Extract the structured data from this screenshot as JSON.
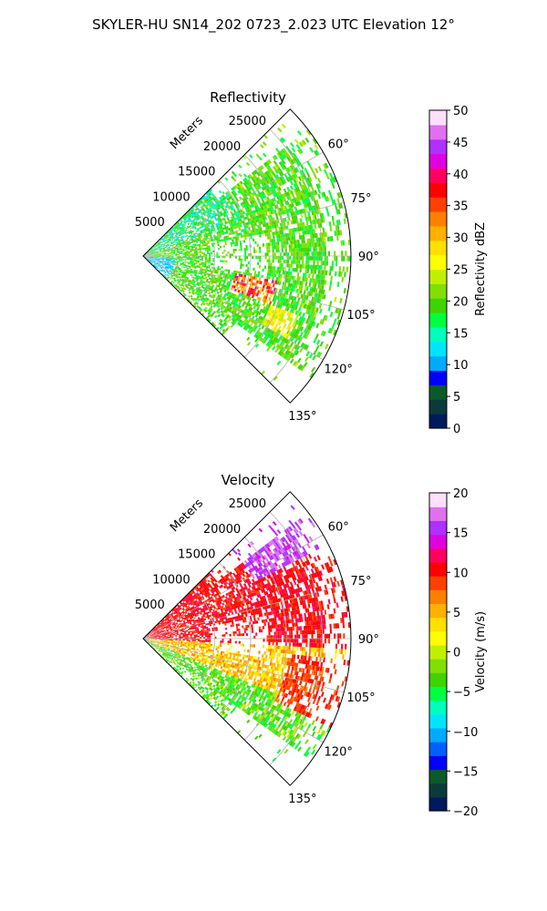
{
  "figure": {
    "suptitle": "SKYLER-HU  SN14_202  0723_2.023 UTC Elevation 12°"
  },
  "chart_data": [
    {
      "type": "heatmap",
      "projection": "polar-sector",
      "title": "Reflectivity",
      "radial_label": "Meters",
      "radial_ticks": [
        "5000",
        "10000",
        "15000",
        "20000",
        "25000"
      ],
      "radial_tick_values": [
        5000,
        10000,
        15000,
        20000,
        25000
      ],
      "rlim": [
        0,
        29000
      ],
      "theta_ticks": [
        "60°",
        "75°",
        "90°",
        "105°",
        "120°",
        "135°"
      ],
      "theta_tick_values": [
        60,
        75,
        90,
        105,
        120,
        135
      ],
      "theta_range": [
        45,
        135
      ],
      "grid": true,
      "colorbar": {
        "label": "Reflectivity dBZ",
        "ticks": [
          "0",
          "5",
          "10",
          "15",
          "20",
          "25",
          "30",
          "35",
          "40",
          "45",
          "50"
        ],
        "vmin": 0,
        "vmax": 50,
        "colors": [
          "#001a5e",
          "#0c3a3a",
          "#0a5a2a",
          "#0000ff",
          "#00aaff",
          "#00e5ff",
          "#00ffbf",
          "#00ff40",
          "#3fd400",
          "#80e000",
          "#c0f000",
          "#ffff00",
          "#ffe000",
          "#ffb000",
          "#ff8000",
          "#ff4000",
          "#ff0000",
          "#ff0060",
          "#e000e0",
          "#b030ff",
          "#e070ee",
          "#ffe0ff"
        ]
      }
    },
    {
      "type": "heatmap",
      "projection": "polar-sector",
      "title": "Velocity",
      "radial_label": "Meters",
      "radial_ticks": [
        "5000",
        "10000",
        "15000",
        "20000",
        "25000"
      ],
      "radial_tick_values": [
        5000,
        10000,
        15000,
        20000,
        25000
      ],
      "rlim": [
        0,
        29000
      ],
      "theta_ticks": [
        "60°",
        "75°",
        "90°",
        "105°",
        "120°",
        "135°"
      ],
      "theta_tick_values": [
        60,
        75,
        90,
        105,
        120,
        135
      ],
      "theta_range": [
        45,
        135
      ],
      "grid": true,
      "colorbar": {
        "label": "Velocity (m/s)",
        "ticks": [
          "−20",
          "−15",
          "−10",
          "−5",
          "0",
          "5",
          "10",
          "15",
          "20"
        ],
        "vmin": -20,
        "vmax": 20,
        "colors": [
          "#001a5e",
          "#0c3a3a",
          "#0a5a2a",
          "#0000ff",
          "#0060ff",
          "#00aaff",
          "#00e5ff",
          "#00ffbf",
          "#00ff40",
          "#3fd400",
          "#80e000",
          "#c0f000",
          "#ffff00",
          "#ffe000",
          "#ffb000",
          "#ff8000",
          "#ff4000",
          "#ff0000",
          "#ff0060",
          "#e000e0",
          "#b030ff",
          "#e070ee",
          "#ffe0ff"
        ]
      }
    }
  ]
}
